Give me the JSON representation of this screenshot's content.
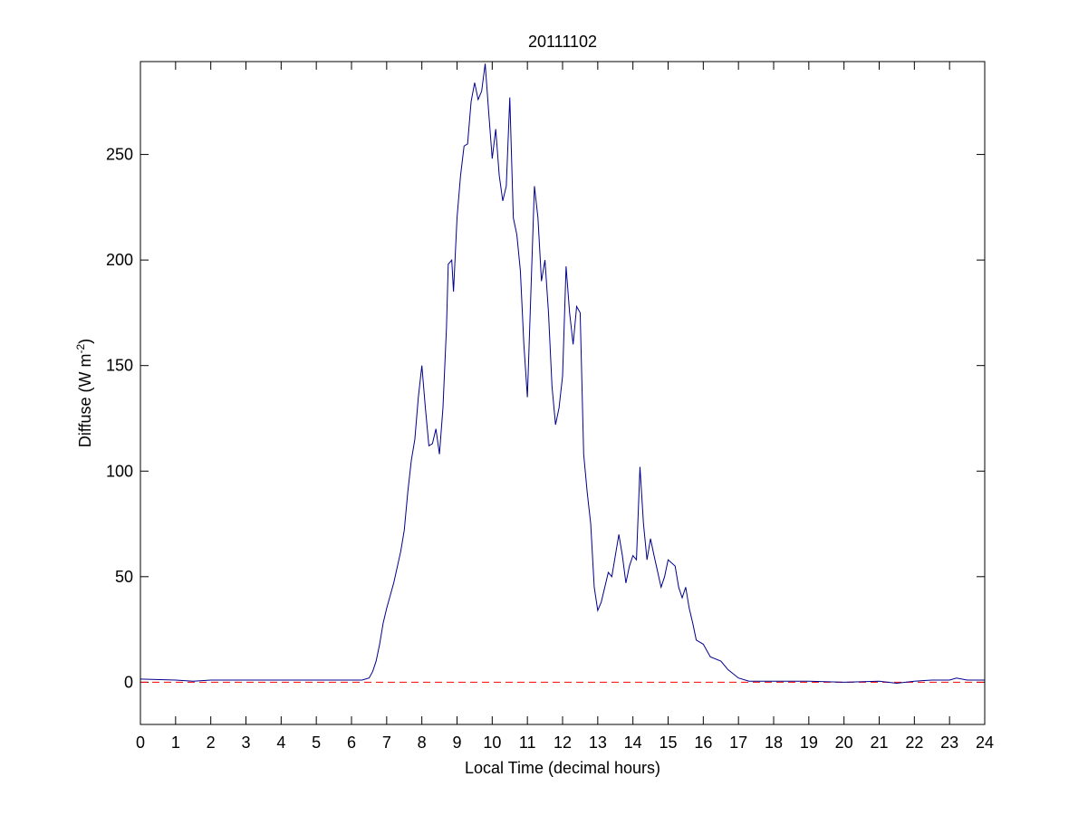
{
  "chart_data": {
    "type": "line",
    "title": "20111102",
    "xlabel": "Local Time (decimal hours)",
    "ylabel": [
      "Diffuse (W m",
      "-2",
      ")"
    ],
    "x": [
      0,
      1,
      1.5,
      2,
      3,
      4,
      5,
      6,
      6.3,
      6.5,
      6.6,
      6.7,
      6.8,
      6.9,
      7.0,
      7.2,
      7.4,
      7.5,
      7.6,
      7.7,
      7.8,
      7.9,
      8.0,
      8.1,
      8.2,
      8.3,
      8.4,
      8.5,
      8.6,
      8.7,
      8.75,
      8.85,
      8.9,
      9.0,
      9.1,
      9.2,
      9.3,
      9.4,
      9.5,
      9.6,
      9.7,
      9.8,
      9.9,
      10.0,
      10.1,
      10.2,
      10.3,
      10.4,
      10.5,
      10.6,
      10.7,
      10.8,
      10.9,
      11.0,
      11.1,
      11.2,
      11.3,
      11.4,
      11.5,
      11.6,
      11.7,
      11.8,
      11.9,
      12.0,
      12.1,
      12.2,
      12.3,
      12.4,
      12.5,
      12.6,
      12.7,
      12.8,
      12.9,
      13.0,
      13.1,
      13.3,
      13.4,
      13.6,
      13.7,
      13.8,
      13.9,
      14.0,
      14.1,
      14.2,
      14.3,
      14.4,
      14.5,
      14.6,
      14.8,
      14.9,
      15.0,
      15.2,
      15.3,
      15.4,
      15.5,
      15.6,
      15.7,
      15.8,
      16.0,
      16.2,
      16.5,
      16.7,
      17.0,
      17.3,
      18,
      19,
      20,
      21,
      21.5,
      22,
      22.5,
      23,
      23.2,
      23.5,
      24
    ],
    "series": [
      {
        "color": "#00008b",
        "values": [
          1.5,
          1,
          0.5,
          1,
          1,
          1,
          1,
          1,
          1,
          2,
          5,
          10,
          18,
          28,
          35,
          47,
          62,
          72,
          90,
          105,
          115,
          135,
          150,
          130,
          112,
          113,
          120,
          108,
          130,
          168,
          198,
          200,
          185,
          220,
          240,
          254,
          255,
          275,
          284,
          276,
          280,
          293,
          270,
          248,
          262,
          240,
          228,
          235,
          277,
          220,
          212,
          195,
          160,
          135,
          185,
          235,
          220,
          190,
          200,
          175,
          140,
          122,
          130,
          145,
          197,
          175,
          160,
          178,
          175,
          108,
          90,
          75,
          45,
          34,
          38,
          52,
          50,
          70,
          60,
          47,
          55,
          60,
          58,
          102,
          75,
          58,
          68,
          60,
          45,
          50,
          58,
          55,
          45,
          40,
          45,
          35,
          28,
          20,
          18,
          12,
          10,
          6,
          2,
          0.5,
          0.5,
          0.5,
          0,
          0.5,
          -0.5,
          0.5,
          1,
          1,
          2,
          1,
          1
        ]
      }
    ],
    "reference_line": {
      "value": 0,
      "color": "#ff0000",
      "style": "dashed"
    },
    "xlim": [
      0,
      24
    ],
    "xticks": [
      0,
      1,
      2,
      3,
      4,
      5,
      6,
      7,
      8,
      9,
      10,
      11,
      12,
      13,
      14,
      15,
      16,
      17,
      18,
      19,
      20,
      21,
      22,
      23,
      24
    ],
    "ylim": [
      -20,
      294
    ],
    "yticks": [
      0,
      50,
      100,
      150,
      200,
      250
    ],
    "grid": false
  }
}
